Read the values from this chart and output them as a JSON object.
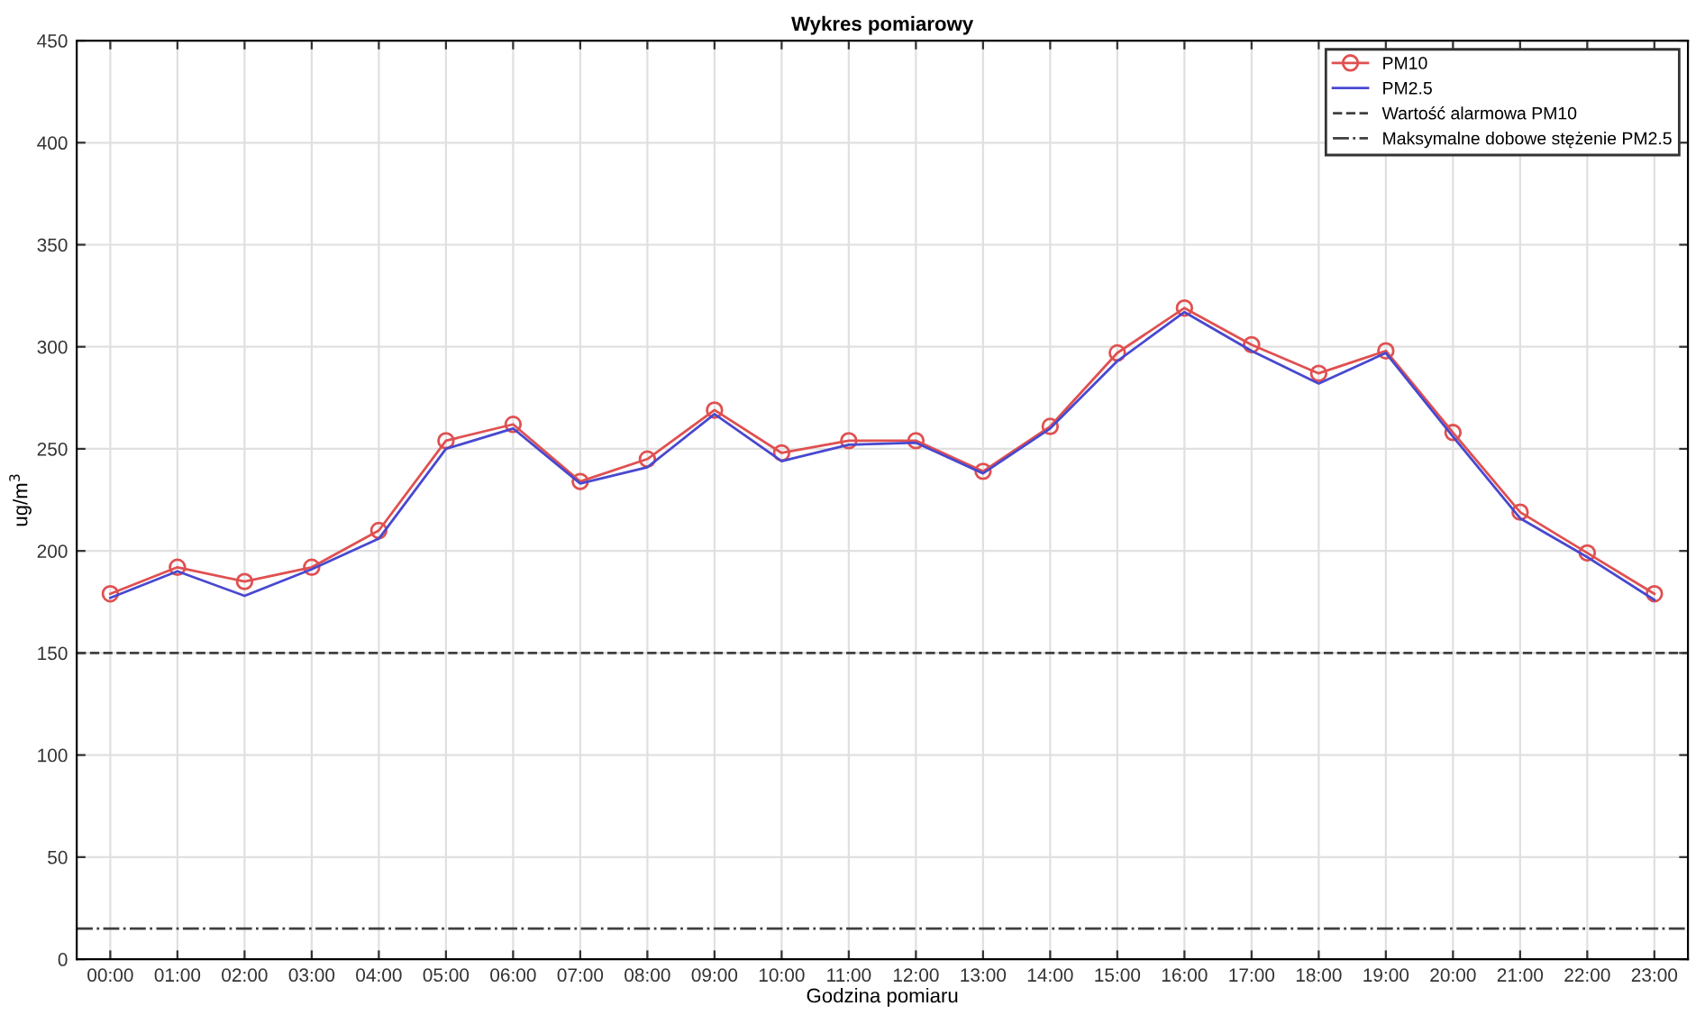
{
  "chart_data": {
    "type": "line",
    "title": "Wykres pomiarowy",
    "xlabel": "Godzina pomiaru",
    "ylabel": "ug/m$^{3}$",
    "categories": [
      "00:00",
      "01:00",
      "02:00",
      "03:00",
      "04:00",
      "05:00",
      "06:00",
      "07:00",
      "08:00",
      "09:00",
      "10:00",
      "11:00",
      "12:00",
      "13:00",
      "14:00",
      "15:00",
      "16:00",
      "17:00",
      "18:00",
      "19:00",
      "20:00",
      "21:00",
      "22:00",
      "23:00"
    ],
    "series": [
      {
        "name": "PM10",
        "color": "#e05050",
        "marker": "circle",
        "values": [
          179,
          192,
          185,
          192,
          210,
          254,
          262,
          234,
          245,
          269,
          248,
          254,
          254,
          239,
          261,
          297,
          319,
          301,
          287,
          298,
          258,
          219,
          199,
          179
        ]
      },
      {
        "name": "PM2.5",
        "color": "#4848d0",
        "marker": "none",
        "values": [
          177,
          190,
          178,
          191,
          206,
          250,
          260,
          233,
          241,
          267,
          244,
          252,
          253,
          238,
          260,
          293,
          317,
          298,
          282,
          297,
          256,
          216,
          197,
          176
        ]
      }
    ],
    "ref_lines": [
      {
        "axis": "y",
        "value": 150,
        "label": "Wartość alarmowa PM10",
        "color": "#404040",
        "line_style": "dashed"
      },
      {
        "axis": "y",
        "value": 15,
        "label": "Maksymalne dobowe stężenie PM2.5",
        "color": "#404040",
        "line_style": "dashdot"
      }
    ],
    "ylim": [
      0,
      450
    ],
    "yticks": [
      0,
      50,
      100,
      150,
      200,
      250,
      300,
      350,
      400,
      450
    ],
    "grid": true,
    "legend": "top right"
  }
}
